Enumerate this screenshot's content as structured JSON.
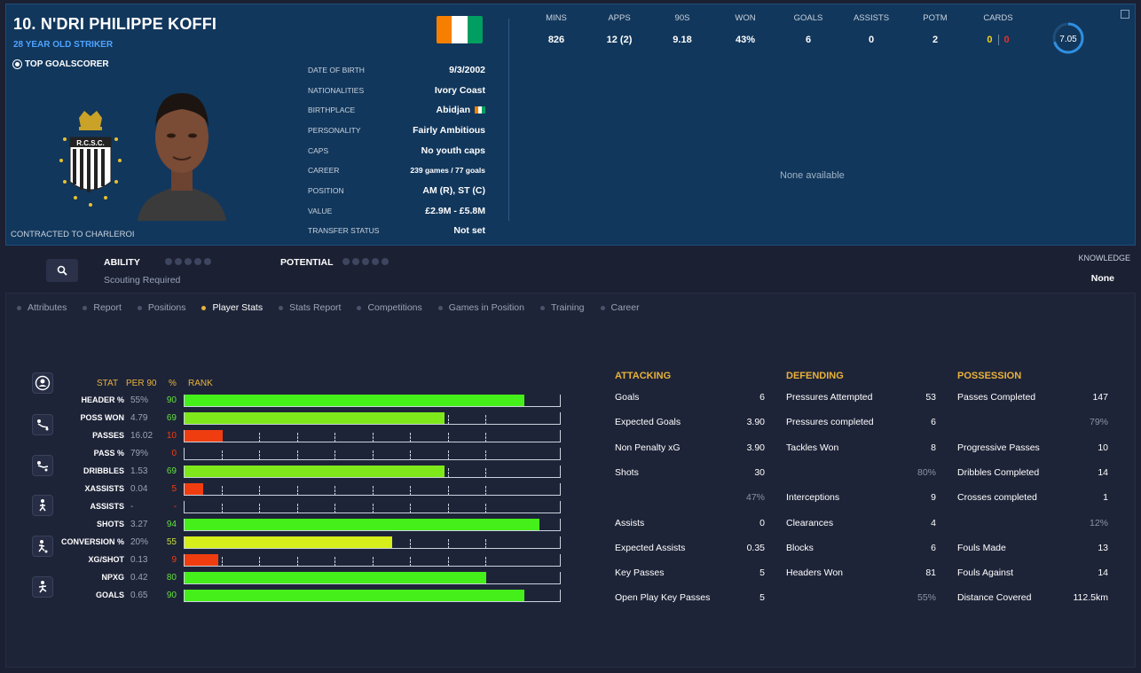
{
  "player": {
    "name": "10. N'DRI PHILIPPE KOFFI",
    "description": "28 YEAR OLD STRIKER",
    "tag": "TOP GOALSCORER",
    "contract": "CONTRACTED TO CHARLEROI",
    "club_crest_text": "R.C.S.C."
  },
  "flag_colors": [
    "#f77f00",
    "#ffffff",
    "#009e60"
  ],
  "info": [
    {
      "label": "DATE OF BIRTH",
      "value": "9/3/2002"
    },
    {
      "label": "NATIONALITIES",
      "value": "Ivory Coast"
    },
    {
      "label": "BIRTHPLACE",
      "value": "Abidjan"
    },
    {
      "label": "PERSONALITY",
      "value": "Fairly Ambitious"
    },
    {
      "label": "CAPS",
      "value": "No youth caps"
    },
    {
      "label": "CAREER",
      "value": "239 games /  77  goals"
    },
    {
      "label": "POSITION",
      "value": "AM (R), ST (C)"
    },
    {
      "label": "VALUE",
      "value": "£2.9M - £5.8M"
    },
    {
      "label": "TRANSFER STATUS",
      "value": "Not set"
    }
  ],
  "season_stats": {
    "headers": [
      "MINS",
      "APPS",
      "90S",
      "WON",
      "GOALS",
      "ASSISTS",
      "POTM",
      "CARDS"
    ],
    "values": [
      "826",
      "12 (2)",
      "9.18",
      "43%",
      "6",
      "0",
      "2"
    ],
    "cards_yellow": "0",
    "cards_red": "0",
    "rating": "7.05",
    "rating_fraction": 0.705
  },
  "history_placeholder": "None available",
  "scouting": {
    "ability_label": "ABILITY",
    "potential_label": "POTENTIAL",
    "scouting_text": "Scouting Required",
    "knowledge_label": "KNOWLEDGE",
    "knowledge_value": "None"
  },
  "tabs": [
    "Attributes",
    "Report",
    "Positions",
    "Player Stats",
    "Stats Report",
    "Competitions",
    "Games in Position",
    "Training",
    "Career"
  ],
  "active_tab": "Player Stats",
  "chart_headers": {
    "stat": "STAT",
    "per90": "PER 90",
    "pct": "%",
    "rank": "RANK"
  },
  "colors": {
    "bar_high": "#45ef1a",
    "bar_mid_high": "#7fe81a",
    "bar_mid": "#d6ee1a",
    "bar_low": "#f03d10",
    "accent": "#e8b23a",
    "pct_high": "#62e23a",
    "pct_mid": "#c9e23a",
    "pct_low": "#f03d10"
  },
  "chart_data": {
    "type": "bar",
    "title": "",
    "xlabel": "RANK",
    "ylabel": "STAT",
    "xlim": [
      0,
      100
    ],
    "categories": [
      "HEADER %",
      "POSS WON",
      "PASSES",
      "PASS %",
      "DRIBBLES",
      "XASSISTS",
      "ASSISTS",
      "SHOTS",
      "CONVERSION %",
      "XG/SHOT",
      "NPXG",
      "GOALS"
    ],
    "per90": [
      "55%",
      "4.79",
      "16.02",
      "79%",
      "1.53",
      "0.04",
      "-",
      "3.27",
      "20%",
      "0.13",
      "0.42",
      "0.65"
    ],
    "percentile_labels": [
      "90",
      "69",
      "10",
      "0",
      "69",
      "5",
      "-",
      "94",
      "55",
      "9",
      "80",
      "90"
    ],
    "values": [
      90,
      69,
      10,
      0,
      69,
      5,
      0,
      94,
      55,
      9,
      80,
      90
    ]
  },
  "tables": {
    "attacking": {
      "title": "ATTACKING",
      "rows": [
        {
          "label": "Goals",
          "value": "6"
        },
        {
          "label": "Expected Goals",
          "value": "3.90"
        },
        {
          "label": "Non Penalty xG",
          "value": "3.90"
        },
        {
          "label": "Shots",
          "value": "30"
        },
        {
          "label": "",
          "value": "47%"
        },
        {
          "label": "Assists",
          "value": "0"
        },
        {
          "label": "Expected Assists",
          "value": "0.35"
        },
        {
          "label": "Key Passes",
          "value": "5"
        },
        {
          "label": "Open Play Key Passes",
          "value": "5"
        }
      ]
    },
    "defending": {
      "title": "DEFENDING",
      "rows": [
        {
          "label": "Pressures Attempted",
          "value": "53"
        },
        {
          "label": "Pressures completed",
          "value": "6"
        },
        {
          "label": "Tackles Won",
          "value": "8"
        },
        {
          "label": "",
          "value": "80%"
        },
        {
          "label": "Interceptions",
          "value": "9"
        },
        {
          "label": "Clearances",
          "value": "4"
        },
        {
          "label": "Blocks",
          "value": "6"
        },
        {
          "label": "Headers Won",
          "value": "81"
        },
        {
          "label": "",
          "value": "55%"
        }
      ]
    },
    "possession": {
      "title": "POSSESSION",
      "rows": [
        {
          "label": "Passes Completed",
          "value": "147"
        },
        {
          "label": "",
          "value": "79%"
        },
        {
          "label": "Progressive Passes",
          "value": "10"
        },
        {
          "label": "Dribbles Completed",
          "value": "14"
        },
        {
          "label": "Crosses completed",
          "value": "1"
        },
        {
          "label": "",
          "value": "12%"
        },
        {
          "label": "Fouls Made",
          "value": "13"
        },
        {
          "label": "Fouls Against",
          "value": "14"
        },
        {
          "label": "Distance Covered",
          "value": "112.5km"
        }
      ]
    }
  }
}
